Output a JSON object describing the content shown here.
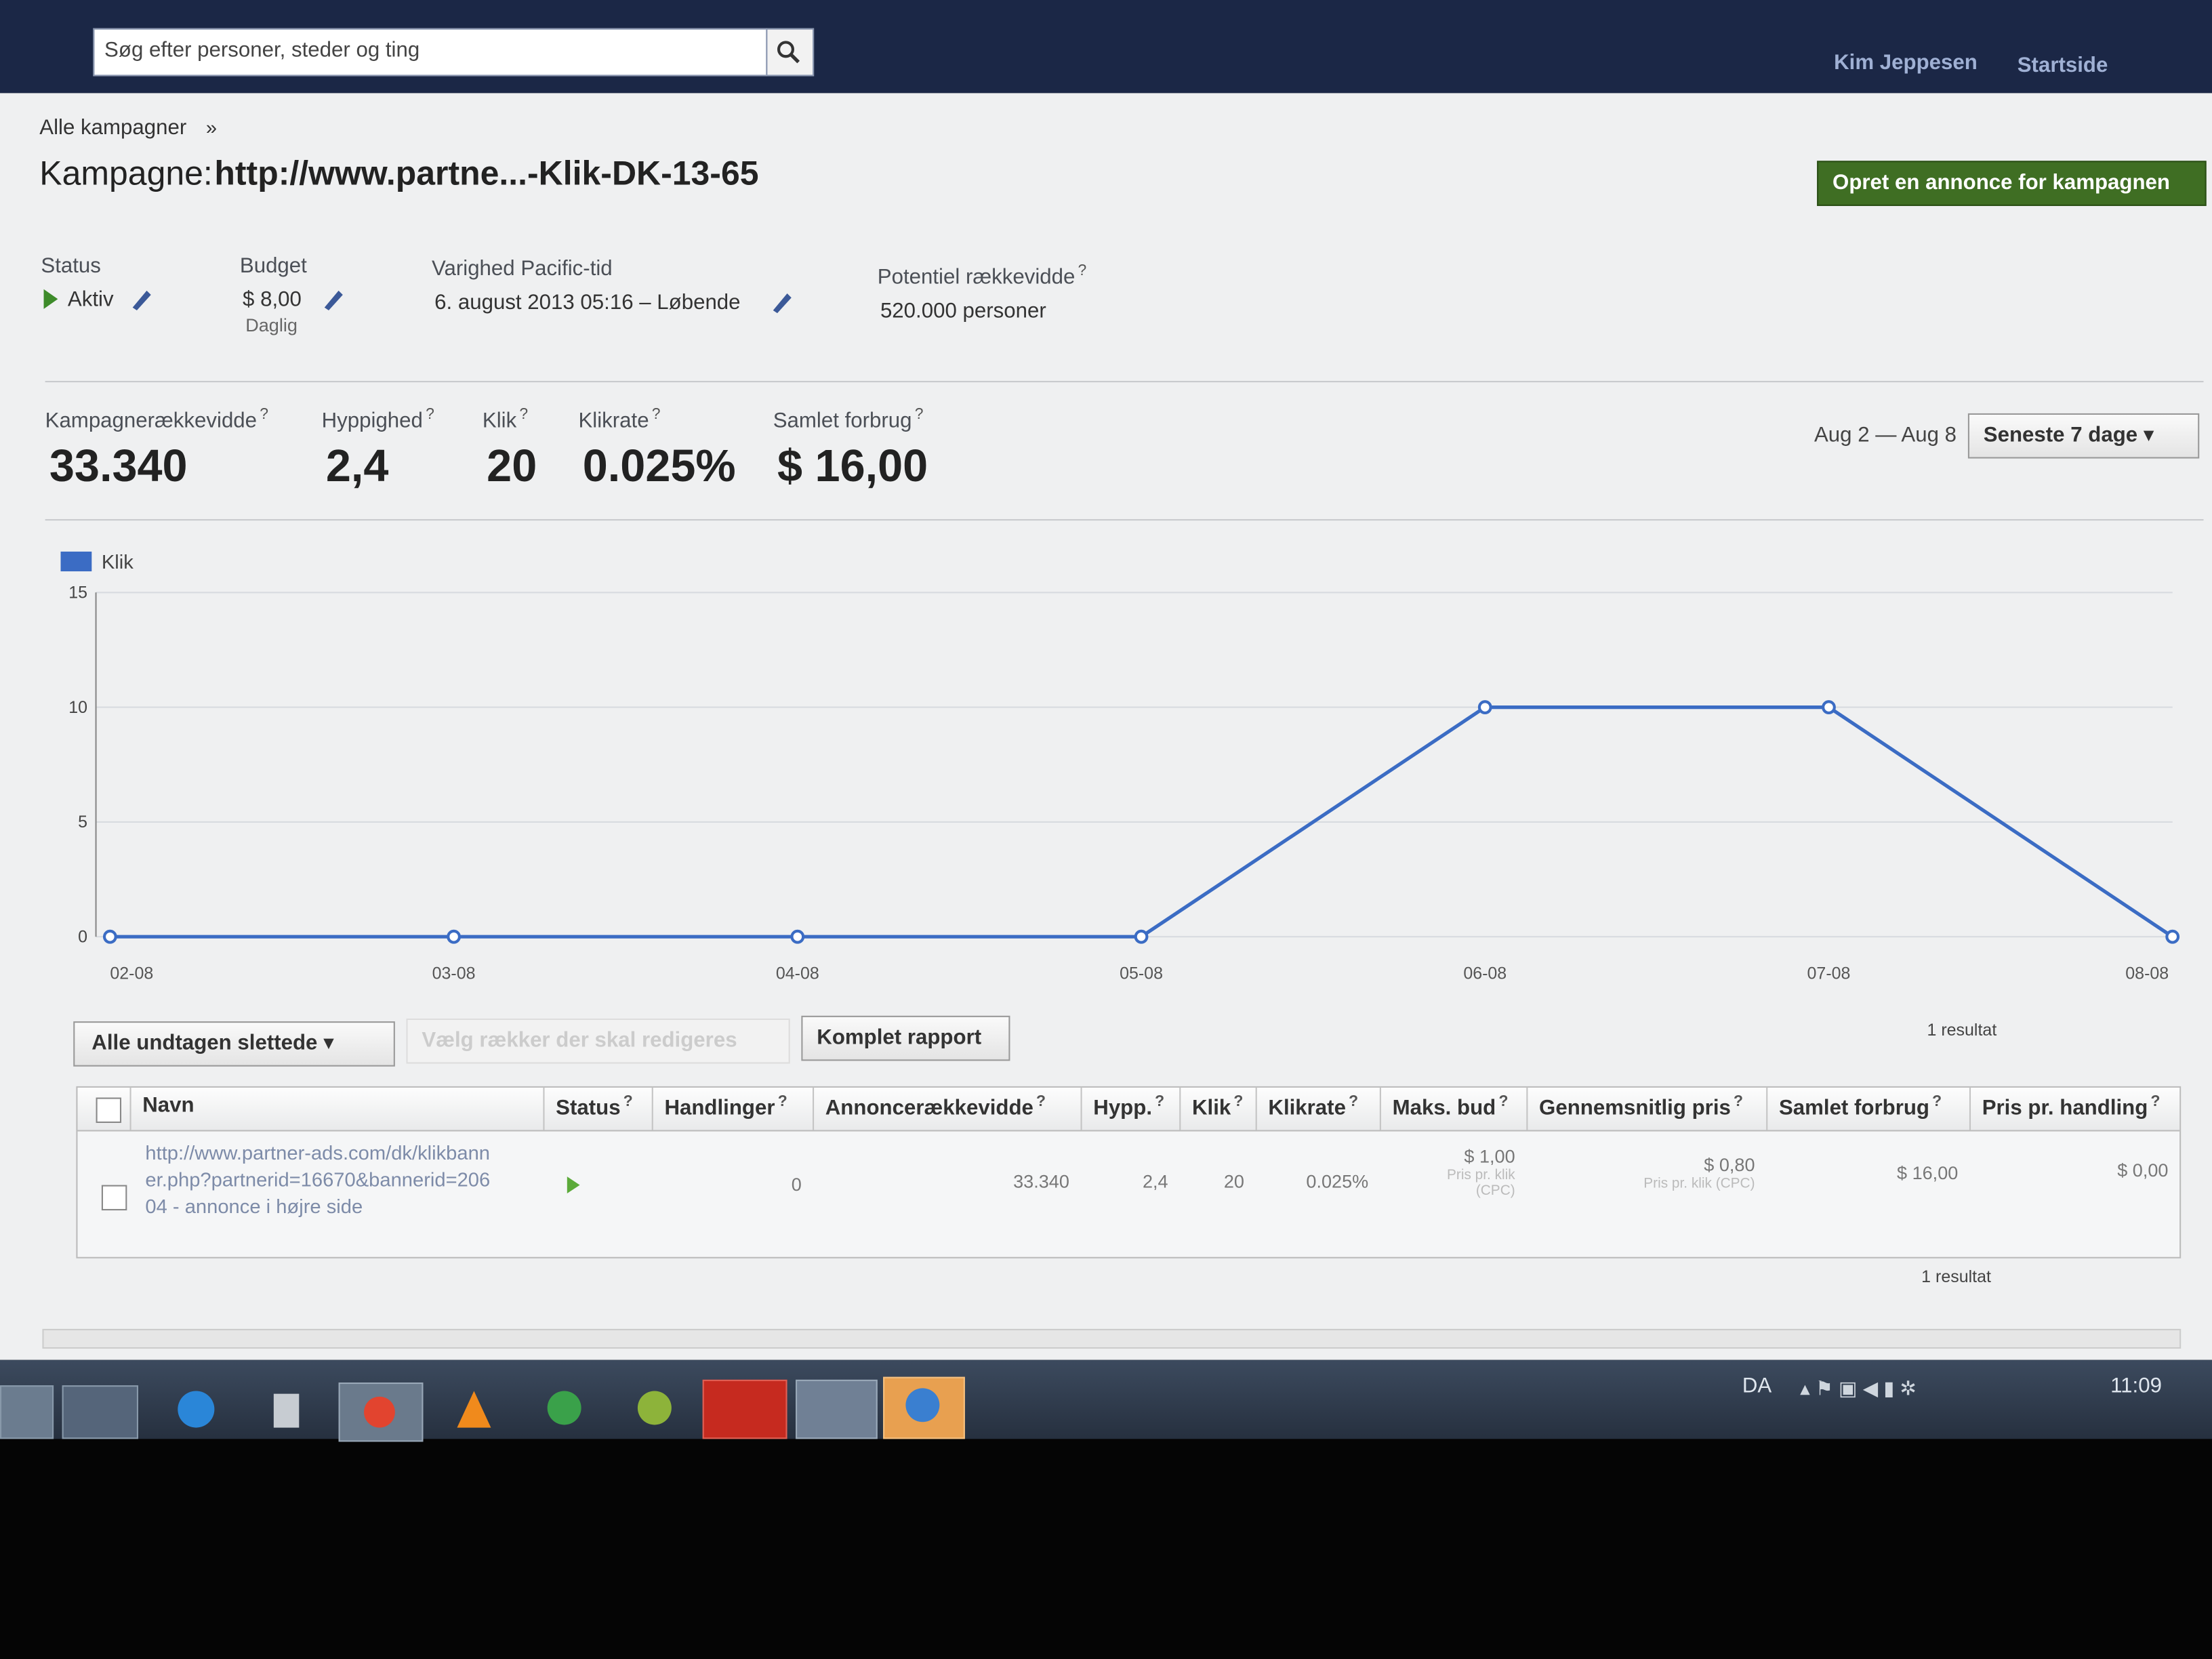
{
  "top_bar": {
    "search_placeholder": "Søg efter personer, steder og ting",
    "user": "Kim Jeppesen",
    "home": "Startside"
  },
  "breadcrumb": {
    "link": "Alle kampagner",
    "separator": "»"
  },
  "campaign": {
    "label": "Kampagne:",
    "name": "http://www.partne...-Klik-DK-13-65",
    "create_button": "Opret en annonce for kampagnen"
  },
  "help_mark": "?",
  "details": {
    "status_label": "Status",
    "status": "Aktiv",
    "budget_label": "Budget",
    "budget": "$ 8,00",
    "budget_period": "Daglig",
    "duration_label": "Varighed Pacific-tid",
    "duration": "6. august 2013 05:16 – Løbende",
    "reach_label": "Potentiel rækkevidde",
    "reach": "520.000 personer"
  },
  "stats": [
    {
      "label": "Kampagnerækkevidde",
      "value": "33.340"
    },
    {
      "label": "Hyppighed",
      "value": "2,4"
    },
    {
      "label": "Klik",
      "value": "20"
    },
    {
      "label": "Klikrate",
      "value": "0.025%"
    },
    {
      "label": "Samlet forbrug",
      "value": "$ 16,00"
    }
  ],
  "date_range": {
    "range": "Aug 2 — Aug 8",
    "preset": "Seneste 7 dage"
  },
  "chart_data": {
    "type": "line",
    "categories": [
      "02-08",
      "03-08",
      "04-08",
      "05-08",
      "06-08",
      "07-08",
      "08-08"
    ],
    "series": [
      {
        "name": "Klik",
        "color": "#3b6cc4",
        "values": [
          0,
          0,
          0,
          0,
          10,
          10,
          0
        ]
      }
    ],
    "ylim": [
      0,
      15
    ],
    "yticks": [
      0,
      5,
      10,
      15
    ],
    "grid": true,
    "legend": "top-left"
  },
  "table_controls": {
    "filter": "Alle undtagen slettede",
    "edit": "Vælg rækker der skal redigeres",
    "report": "Komplet rapport",
    "result_count": "1 resultat"
  },
  "table": {
    "columns": [
      "Navn",
      "Status",
      "Handlinger",
      "Annoncerækkevidde",
      "Hypp.",
      "Klik",
      "Klikrate",
      "Maks. bud",
      "Gennemsnitlig pris",
      "Samlet forbrug",
      "Pris pr. handling"
    ],
    "rows": [
      {
        "name": "http://www.partner-ads.com/dk/klikbanner.php?partnerid=16670&bannerid=20604 - annonce i højre side",
        "actions": "0",
        "reach": "33.340",
        "frequency": "2,4",
        "clicks": "20",
        "ctr": "0.025%",
        "max_bid": "$ 1,00",
        "max_bid_note": "Pris pr. klik (CPC)",
        "avg_price": "$ 0,80",
        "avg_price_note": "Pris pr. klik (CPC)",
        "spend": "$ 16,00",
        "cost_per_action": "$ 0,00"
      }
    ]
  },
  "taskbar": {
    "language": "DA",
    "time": "11:09"
  }
}
